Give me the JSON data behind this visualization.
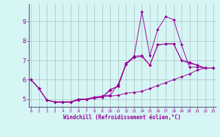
{
  "xlabel": "Windchill (Refroidissement éolien,°C)",
  "bg_color": "#d6f5f5",
  "line_color": "#990099",
  "grid_color": "#aabbbb",
  "x_ticks": [
    0,
    1,
    2,
    3,
    4,
    5,
    6,
    7,
    8,
    9,
    10,
    11,
    12,
    13,
    14,
    15,
    16,
    17,
    18,
    19,
    20,
    21,
    22,
    23
  ],
  "y_ticks": [
    5,
    6,
    7,
    8,
    9
  ],
  "xlim": [
    -0.3,
    23.3
  ],
  "ylim": [
    4.6,
    9.9
  ],
  "series": [
    [
      6.0,
      5.55,
      4.95,
      4.85,
      4.85,
      4.85,
      5.0,
      5.0,
      5.1,
      5.15,
      5.2,
      5.75,
      6.85,
      7.2,
      9.5,
      7.25,
      8.6,
      9.25,
      9.1,
      7.8,
      6.65,
      6.65,
      6.6,
      6.6
    ],
    [
      6.0,
      5.55,
      4.95,
      4.85,
      4.85,
      4.85,
      4.95,
      5.0,
      5.1,
      5.15,
      5.15,
      5.2,
      5.3,
      5.35,
      5.4,
      5.55,
      5.7,
      5.85,
      6.0,
      6.15,
      6.3,
      6.5,
      6.6,
      6.6
    ],
    [
      6.0,
      5.55,
      4.95,
      4.85,
      4.85,
      4.85,
      4.95,
      5.0,
      5.05,
      5.1,
      5.5,
      5.65,
      6.8,
      7.2,
      7.25,
      6.75,
      7.8,
      7.85,
      7.85,
      7.0,
      6.85,
      6.75,
      6.6,
      6.6
    ],
    [
      6.0,
      5.55,
      4.95,
      4.85,
      4.85,
      4.85,
      5.0,
      5.0,
      5.05,
      5.1,
      5.45,
      5.7,
      6.8,
      7.15,
      7.2,
      6.75,
      7.8,
      7.85,
      7.85,
      7.0,
      6.9,
      6.75,
      6.6,
      6.6
    ]
  ]
}
